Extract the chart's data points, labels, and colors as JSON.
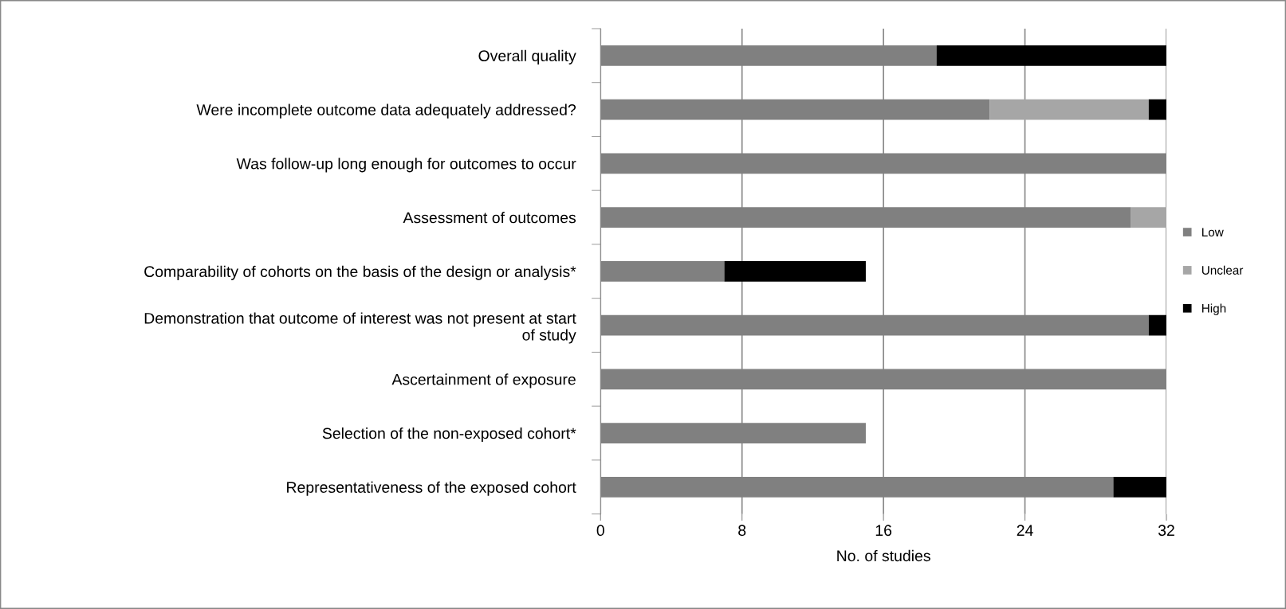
{
  "chart_data": {
    "type": "bar",
    "orientation": "horizontal",
    "stacked": true,
    "categories": [
      "Overall quality",
      "Were incomplete outcome data adequately addressed?",
      "Was follow-up long enough for outcomes to occur",
      "Assessment of outcomes",
      "Comparability of cohorts on the basis of the design or analysis*",
      "Demonstration that outcome of interest was not present at start\nof study",
      "Ascertainment of exposure",
      "Selection of the non-exposed cohort*",
      "Representativeness of the exposed cohort"
    ],
    "series": [
      {
        "name": "Low",
        "color": "#808080",
        "values": [
          19,
          22,
          32,
          30,
          7,
          31,
          32,
          15,
          29
        ]
      },
      {
        "name": "Unclear",
        "color": "#a6a6a6",
        "values": [
          0,
          9,
          0,
          2,
          0,
          0,
          0,
          0,
          0
        ]
      },
      {
        "name": "High",
        "color": "#000000",
        "values": [
          13,
          1,
          0,
          0,
          8,
          1,
          0,
          0,
          3
        ]
      }
    ],
    "xlabel": "No. of studies",
    "xlim": [
      0,
      32
    ],
    "xticks": [
      0,
      8,
      16,
      24,
      32
    ],
    "grid": "x",
    "legend": "right"
  }
}
